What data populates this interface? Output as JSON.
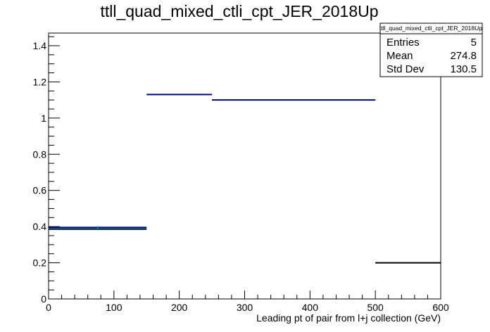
{
  "chart_data": {
    "type": "histogram",
    "title": "ttll_quad_mixed_ctli_cpt_JER_2018Up",
    "xlabel": "Leading pt of pair from l+j collection (GeV)",
    "ylabel": "",
    "xlim": [
      0,
      600
    ],
    "ylim": [
      0,
      1.47
    ],
    "x_ticks": [
      "0",
      "100",
      "200",
      "300",
      "400",
      "500",
      "600"
    ],
    "y_ticks": [
      "0",
      "0.2",
      "0.4",
      "0.6",
      "0.8",
      "1",
      "1.2",
      "1.4"
    ],
    "bins": [
      {
        "x_low": 0,
        "x_high": 150,
        "value": 0.395,
        "color": "#00008b"
      },
      {
        "x_low": 150,
        "x_high": 250,
        "value": 1.13,
        "color": "#00008b"
      },
      {
        "x_low": 250,
        "x_high": 500,
        "value": 1.1,
        "color": "#00008b"
      },
      {
        "x_low": 500,
        "x_high": 600,
        "value": 0.2,
        "color": "#000000"
      }
    ],
    "extra_lines": [
      {
        "x_low": 0,
        "x_high": 150,
        "value": 0.39,
        "color": "#00aaaa"
      },
      {
        "x_low": 0,
        "x_high": 150,
        "value": 0.385,
        "color": "#000000"
      }
    ],
    "stats": {
      "name": "ttll_quad_mixed_ctli_cpt_JER_2018Up",
      "rows": [
        {
          "label": "Entries",
          "value": "5"
        },
        {
          "label": "Mean",
          "value": "274.8"
        },
        {
          "label": "Std Dev",
          "value": "130.5"
        }
      ]
    }
  }
}
